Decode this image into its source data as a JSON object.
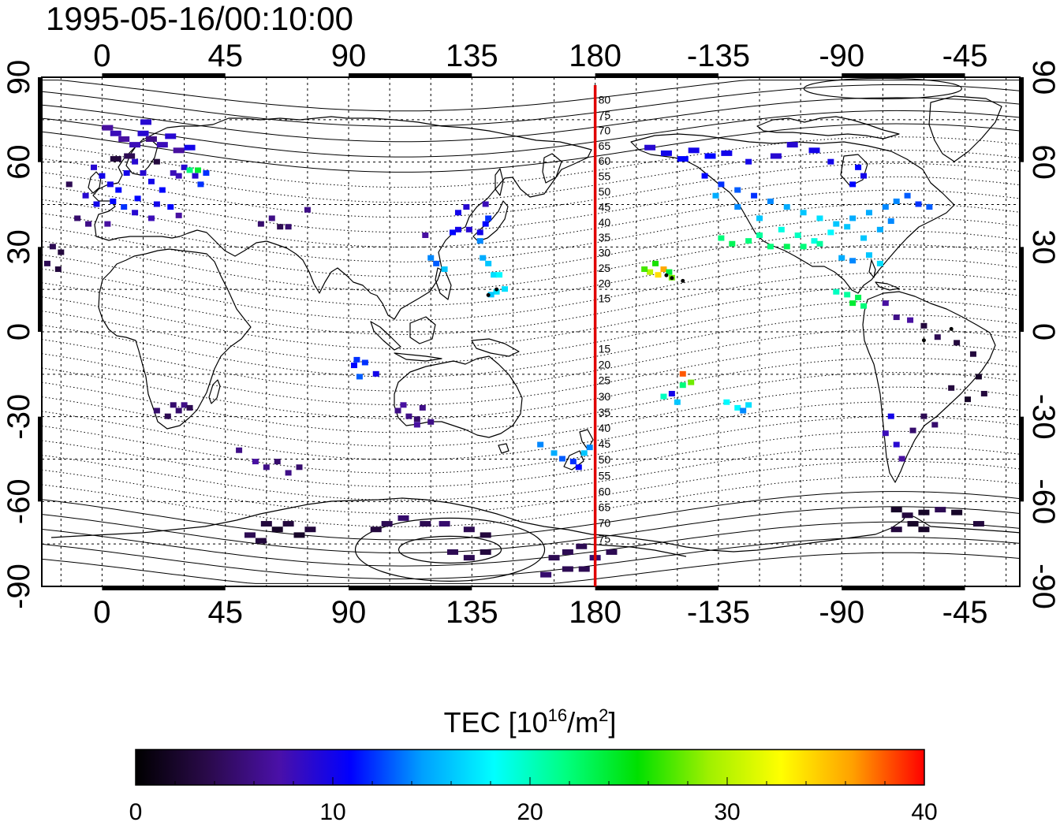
{
  "timestamp": "1995-05-16/00:10:00",
  "map": {
    "lon_ticks_top": [
      "0",
      "45",
      "90",
      "135",
      "180",
      "-135",
      "-90",
      "-45"
    ],
    "lon_ticks_bottom": [
      "0",
      "45",
      "90",
      "135",
      "180",
      "-135",
      "-90",
      "-45"
    ],
    "lat_ticks_left": [
      "90",
      "60",
      "30",
      "0",
      "-30",
      "-60",
      "-90"
    ],
    "lat_ticks_right": [
      "90",
      "60",
      "30",
      "0",
      "-30",
      "-60",
      "-90"
    ],
    "meridian_lon": 180,
    "meridian_color": "#e00000",
    "contour_labels_north": [
      "80",
      "75",
      "70",
      "65",
      "60",
      "55",
      "50",
      "45",
      "40",
      "35",
      "30",
      "25",
      "20",
      "15"
    ],
    "contour_labels_south": [
      "15",
      "20",
      "25",
      "30",
      "35",
      "40",
      "45",
      "50",
      "55",
      "60",
      "65",
      "70",
      "75"
    ]
  },
  "colorbar": {
    "label_prefix": "TEC  [10",
    "label_exp1": "16",
    "label_mid": "/m",
    "label_exp2": "2",
    "label_suffix": "]",
    "ticks": [
      "0",
      "10",
      "20",
      "30",
      "40"
    ],
    "range": [
      0,
      40
    ],
    "stops": [
      "#000000",
      "#2a0a4a",
      "#4a10a8",
      "#0000ff",
      "#00a0ff",
      "#00ffff",
      "#00ff80",
      "#00e000",
      "#a0f000",
      "#ffff00",
      "#ffa000",
      "#ff0000"
    ]
  },
  "chart_data": {
    "type": "scatter",
    "title": "1995-05-16/00:10:00",
    "xlabel": "",
    "ylabel": "",
    "xlim": [
      -22,
      335
    ],
    "ylim": [
      -90,
      90
    ],
    "value_label": "TEC [10^16/m^2]",
    "points": [
      [
        2,
        72,
        7
      ],
      [
        5,
        70,
        8
      ],
      [
        8,
        68,
        7
      ],
      [
        12,
        66,
        8
      ],
      [
        15,
        70,
        9
      ],
      [
        18,
        68,
        6
      ],
      [
        22,
        66,
        8
      ],
      [
        25,
        69,
        9
      ],
      [
        28,
        64,
        7
      ],
      [
        32,
        65,
        10
      ],
      [
        -3,
        58,
        9
      ],
      [
        0,
        55,
        10
      ],
      [
        3,
        52,
        10
      ],
      [
        6,
        50,
        11
      ],
      [
        9,
        56,
        10
      ],
      [
        12,
        60,
        9
      ],
      [
        15,
        56,
        9
      ],
      [
        18,
        53,
        10
      ],
      [
        22,
        50,
        11
      ],
      [
        26,
        56,
        8
      ],
      [
        30,
        58,
        9
      ],
      [
        34,
        55,
        9
      ],
      [
        36,
        52,
        12
      ],
      [
        38,
        56,
        12
      ],
      [
        -6,
        48,
        9
      ],
      [
        -2,
        45,
        10
      ],
      [
        4,
        46,
        11
      ],
      [
        8,
        44,
        12
      ],
      [
        13,
        47,
        11
      ],
      [
        20,
        45,
        10
      ],
      [
        25,
        44,
        11
      ],
      [
        -9,
        40,
        5
      ],
      [
        -5,
        38,
        6
      ],
      [
        2,
        38,
        7
      ],
      [
        12,
        42,
        9
      ],
      [
        18,
        40,
        8
      ],
      [
        28,
        41,
        7
      ],
      [
        10,
        62,
        4
      ],
      [
        5,
        61,
        3
      ],
      [
        20,
        60,
        3
      ],
      [
        16,
        74,
        9
      ],
      [
        32,
        57,
        22
      ],
      [
        35,
        57,
        24
      ],
      [
        28,
        55,
        8
      ],
      [
        -12,
        52,
        4
      ],
      [
        -18,
        30,
        4
      ],
      [
        -15,
        28,
        3
      ],
      [
        -20,
        24,
        4
      ],
      [
        -16,
        22,
        3
      ],
      [
        58,
        38,
        5
      ],
      [
        62,
        40,
        6
      ],
      [
        65,
        37,
        4
      ],
      [
        68,
        37,
        5
      ],
      [
        75,
        43,
        6
      ],
      [
        20,
        -28,
        5
      ],
      [
        24,
        -30,
        4
      ],
      [
        28,
        -28,
        5
      ],
      [
        30,
        -26,
        6
      ],
      [
        26,
        -26,
        5
      ],
      [
        32,
        -27,
        4
      ],
      [
        92,
        -12,
        11
      ],
      [
        96,
        -11,
        12
      ],
      [
        94,
        -16,
        13
      ],
      [
        100,
        -15,
        10
      ],
      [
        93,
        -10,
        12
      ],
      [
        110,
        -26,
        7
      ],
      [
        112,
        -30,
        6
      ],
      [
        115,
        -31,
        5
      ],
      [
        117,
        -27,
        6
      ],
      [
        120,
        -32,
        6
      ],
      [
        108,
        -28,
        6
      ],
      [
        115,
        -33,
        7
      ],
      [
        118,
        34,
        7
      ],
      [
        120,
        26,
        14
      ],
      [
        125,
        22,
        16
      ],
      [
        122,
        24,
        13
      ],
      [
        128,
        35,
        11
      ],
      [
        130,
        36,
        10
      ],
      [
        134,
        36,
        9
      ],
      [
        138,
        35,
        10
      ],
      [
        140,
        38,
        11
      ],
      [
        141,
        40,
        12
      ],
      [
        138,
        32,
        14
      ],
      [
        139,
        26,
        15
      ],
      [
        141,
        24,
        16
      ],
      [
        143,
        20,
        17
      ],
      [
        144,
        14,
        17
      ],
      [
        142,
        13,
        16
      ],
      [
        145,
        20,
        18
      ],
      [
        147,
        15,
        17
      ],
      [
        130,
        42,
        10
      ],
      [
        133,
        44,
        9
      ],
      [
        140,
        45,
        8
      ],
      [
        160,
        -40,
        14
      ],
      [
        165,
        -43,
        15
      ],
      [
        168,
        -45,
        13
      ],
      [
        172,
        -46,
        12
      ],
      [
        174,
        -48,
        11
      ],
      [
        176,
        -43,
        16
      ],
      [
        178,
        -41,
        14
      ],
      [
        200,
        21,
        30
      ],
      [
        203,
        20,
        34
      ],
      [
        205,
        22,
        36
      ],
      [
        208,
        19,
        28
      ],
      [
        202,
        24,
        26
      ],
      [
        198,
        22,
        27
      ],
      [
        207,
        21,
        24
      ],
      [
        205,
        -23,
        20
      ],
      [
        210,
        -25,
        16
      ],
      [
        212,
        -19,
        22
      ],
      [
        215,
        -18,
        28
      ],
      [
        212,
        -15,
        38
      ],
      [
        208,
        -22,
        10
      ],
      [
        228,
        -25,
        18
      ],
      [
        232,
        -27,
        18
      ],
      [
        236,
        -26,
        17
      ],
      [
        234,
        -28,
        14
      ],
      [
        200,
        65,
        9
      ],
      [
        206,
        63,
        10
      ],
      [
        212,
        61,
        11
      ],
      [
        216,
        64,
        10
      ],
      [
        222,
        62,
        11
      ],
      [
        228,
        63,
        10
      ],
      [
        236,
        60,
        10
      ],
      [
        246,
        62,
        9
      ],
      [
        252,
        66,
        9
      ],
      [
        260,
        64,
        10
      ],
      [
        266,
        60,
        10
      ],
      [
        276,
        58,
        11
      ],
      [
        278,
        55,
        10
      ],
      [
        274,
        52,
        11
      ],
      [
        220,
        55,
        11
      ],
      [
        226,
        52,
        12
      ],
      [
        232,
        50,
        13
      ],
      [
        238,
        48,
        12
      ],
      [
        244,
        46,
        14
      ],
      [
        250,
        44,
        15
      ],
      [
        256,
        42,
        16
      ],
      [
        262,
        40,
        17
      ],
      [
        268,
        38,
        16
      ],
      [
        274,
        40,
        15
      ],
      [
        280,
        42,
        15
      ],
      [
        286,
        44,
        14
      ],
      [
        290,
        46,
        14
      ],
      [
        294,
        48,
        13
      ],
      [
        298,
        45,
        12
      ],
      [
        302,
        44,
        13
      ],
      [
        224,
        48,
        15
      ],
      [
        232,
        44,
        14
      ],
      [
        240,
        40,
        16
      ],
      [
        248,
        36,
        19
      ],
      [
        254,
        34,
        20
      ],
      [
        260,
        32,
        19
      ],
      [
        266,
        35,
        18
      ],
      [
        272,
        37,
        16
      ],
      [
        278,
        33,
        16
      ],
      [
        284,
        36,
        15
      ],
      [
        288,
        39,
        14
      ],
      [
        226,
        33,
        22
      ],
      [
        230,
        31,
        23
      ],
      [
        236,
        32,
        22
      ],
      [
        240,
        34,
        21
      ],
      [
        244,
        30,
        22
      ],
      [
        250,
        30,
        23
      ],
      [
        256,
        30,
        22
      ],
      [
        262,
        31,
        21
      ],
      [
        270,
        26,
        15
      ],
      [
        274,
        25,
        14
      ],
      [
        280,
        27,
        16
      ],
      [
        284,
        24,
        17
      ],
      [
        268,
        14,
        20
      ],
      [
        272,
        13,
        21
      ],
      [
        276,
        12,
        23
      ],
      [
        278,
        9,
        22
      ],
      [
        274,
        10,
        24
      ],
      [
        286,
        10,
        7
      ],
      [
        290,
        5,
        6
      ],
      [
        295,
        4,
        7
      ],
      [
        300,
        2,
        3
      ],
      [
        305,
        -2,
        4
      ],
      [
        312,
        -4,
        3
      ],
      [
        318,
        -8,
        3
      ],
      [
        320,
        -16,
        2
      ],
      [
        316,
        -24,
        2
      ],
      [
        322,
        -22,
        3
      ],
      [
        310,
        -20,
        3
      ],
      [
        300,
        -30,
        4
      ],
      [
        304,
        -33,
        5
      ],
      [
        296,
        -35,
        5
      ],
      [
        288,
        -30,
        10
      ],
      [
        286,
        -36,
        8
      ],
      [
        290,
        -40,
        9
      ],
      [
        292,
        -45,
        7
      ],
      [
        50,
        -42,
        6
      ],
      [
        56,
        -46,
        7
      ],
      [
        60,
        -48,
        6
      ],
      [
        64,
        -46,
        5
      ],
      [
        68,
        -50,
        6
      ],
      [
        72,
        -48,
        5
      ],
      [
        60,
        -68,
        3
      ],
      [
        64,
        -70,
        2
      ],
      [
        68,
        -68,
        3
      ],
      [
        72,
        -72,
        2
      ],
      [
        58,
        -74,
        3
      ],
      [
        54,
        -72,
        4
      ],
      [
        76,
        -70,
        3
      ],
      [
        100,
        -70,
        3
      ],
      [
        104,
        -68,
        4
      ],
      [
        110,
        -66,
        5
      ],
      [
        118,
        -68,
        4
      ],
      [
        125,
        -68,
        5
      ],
      [
        134,
        -70,
        4
      ],
      [
        140,
        -72,
        3
      ],
      [
        128,
        -78,
        4
      ],
      [
        134,
        -80,
        4
      ],
      [
        140,
        -78,
        3
      ],
      [
        165,
        -80,
        4
      ],
      [
        170,
        -78,
        4
      ],
      [
        175,
        -76,
        4
      ],
      [
        180,
        -80,
        5
      ],
      [
        186,
        -78,
        4
      ],
      [
        162,
        -86,
        5
      ],
      [
        170,
        -84,
        4
      ],
      [
        176,
        -84,
        4
      ],
      [
        290,
        -63,
        2
      ],
      [
        294,
        -65,
        3
      ],
      [
        300,
        -64,
        2
      ],
      [
        306,
        -63,
        4
      ],
      [
        312,
        -64,
        2
      ],
      [
        296,
        -68,
        2
      ],
      [
        320,
        -68,
        3
      ],
      [
        290,
        -70,
        3
      ],
      [
        300,
        -70,
        2
      ]
    ],
    "markers": [
      [
        141,
        13,
        0
      ],
      [
        144,
        15,
        0
      ],
      [
        206,
        20,
        0
      ],
      [
        208,
        19,
        0
      ],
      [
        212,
        18,
        0
      ],
      [
        310,
        1,
        0
      ],
      [
        300,
        -3,
        0
      ]
    ]
  }
}
